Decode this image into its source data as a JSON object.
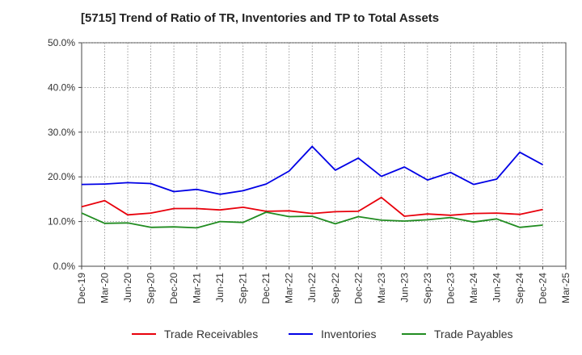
{
  "chart_data": {
    "type": "line",
    "title": "[5715]  Trend of Ratio of TR, Inventories and TP to Total Assets",
    "xlabel": "",
    "ylabel": "",
    "ylim": [
      0,
      50
    ],
    "y_ticks": [
      "0.0%",
      "10.0%",
      "20.0%",
      "30.0%",
      "40.0%",
      "50.0%"
    ],
    "y_tick_values": [
      0,
      10,
      20,
      30,
      40,
      50
    ],
    "x": [
      "Dec-19",
      "Mar-20",
      "Jun-20",
      "Sep-20",
      "Dec-20",
      "Mar-21",
      "Jun-21",
      "Sep-21",
      "Dec-21",
      "Mar-22",
      "Jun-22",
      "Sep-22",
      "Dec-22",
      "Mar-23",
      "Jun-23",
      "Sep-23",
      "Dec-23",
      "Mar-24",
      "Jun-24",
      "Sep-24",
      "Dec-24",
      "Mar-25"
    ],
    "grid": true,
    "legend_position": "bottom",
    "series": [
      {
        "name": "Trade Receivables",
        "color": "#e8000b",
        "values": [
          13.3,
          14.7,
          11.5,
          11.9,
          12.9,
          12.9,
          12.6,
          13.2,
          12.3,
          12.4,
          11.8,
          12.2,
          12.3,
          15.4,
          11.2,
          11.7,
          11.4,
          11.8,
          11.9,
          11.6,
          12.7,
          null
        ]
      },
      {
        "name": "Inventories",
        "color": "#0000e6",
        "values": [
          18.3,
          18.4,
          18.7,
          18.5,
          16.7,
          17.2,
          16.1,
          16.9,
          18.4,
          21.3,
          26.8,
          21.5,
          24.2,
          20.1,
          22.2,
          19.3,
          21.0,
          18.3,
          19.5,
          25.5,
          22.7,
          null
        ]
      },
      {
        "name": "Trade Payables",
        "color": "#218c21",
        "values": [
          11.9,
          9.6,
          9.7,
          8.7,
          8.8,
          8.6,
          10.0,
          9.8,
          12.1,
          11.1,
          11.2,
          9.5,
          11.1,
          10.3,
          10.1,
          10.4,
          10.9,
          9.9,
          10.6,
          8.7,
          9.2,
          null
        ]
      }
    ]
  }
}
